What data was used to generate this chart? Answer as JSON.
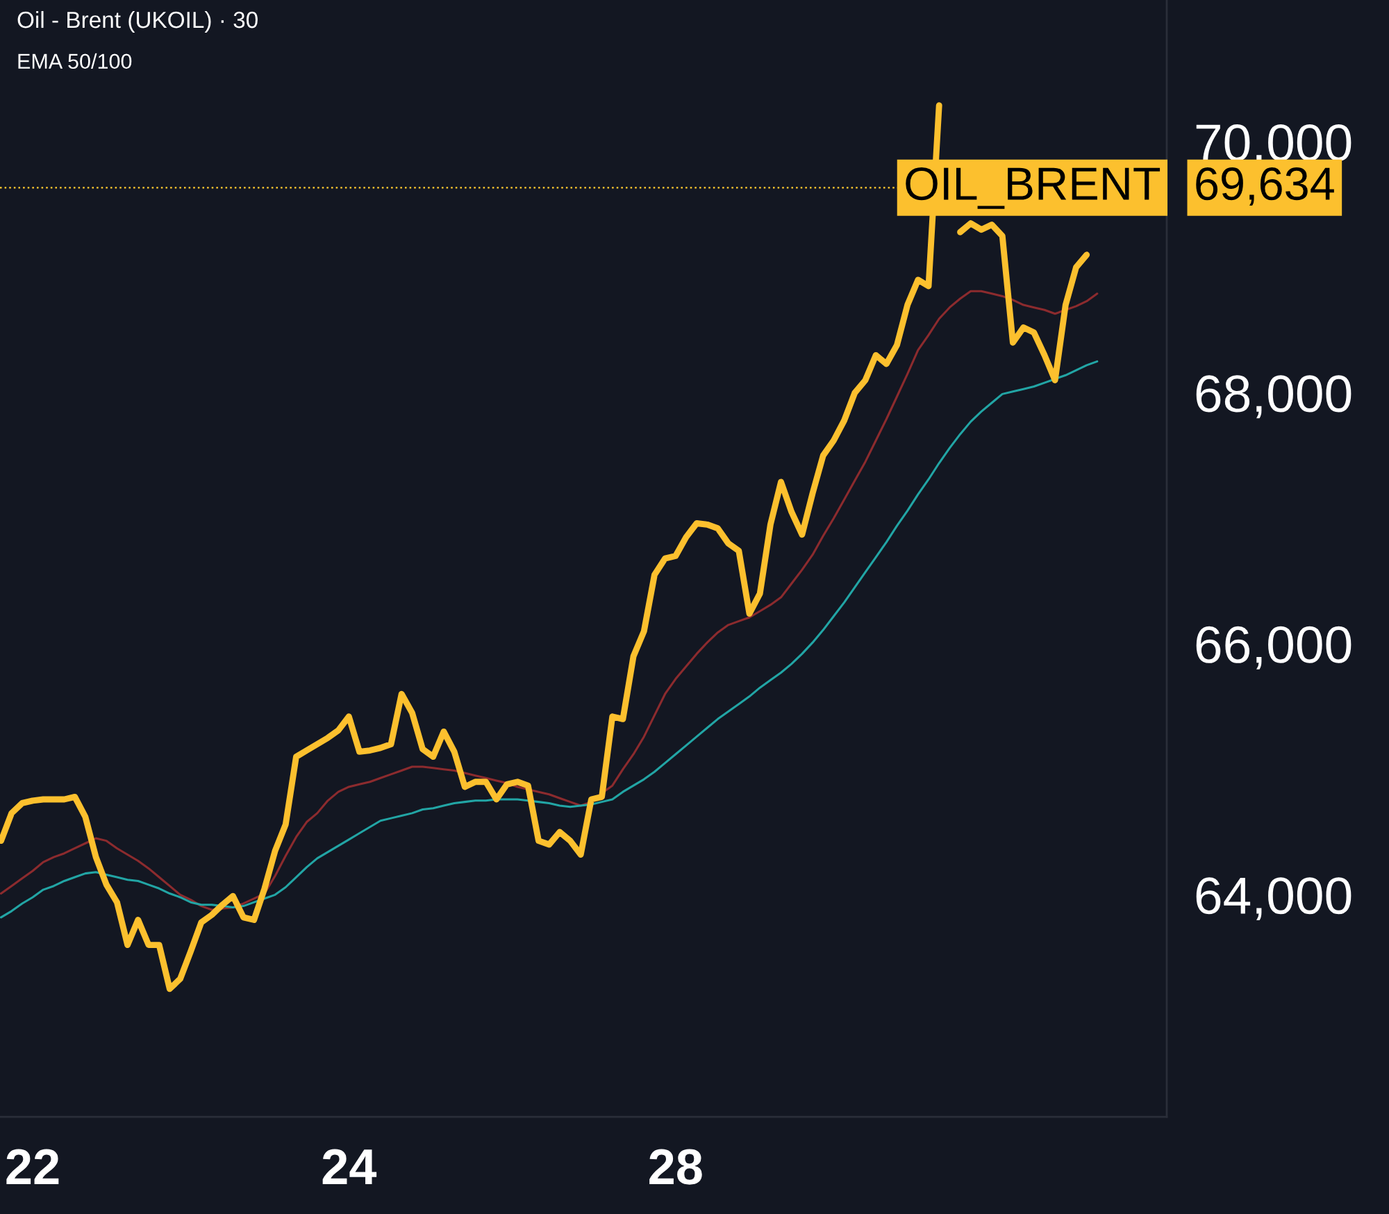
{
  "chart_data": {
    "type": "line",
    "title": "Oil - Brent (UKOIL) · 30",
    "annotations": [
      "EMA 50/100",
      "69,634"
    ],
    "categories": [
      null,
      null,
      null,
      "22",
      null,
      null,
      null,
      null,
      null,
      null,
      null,
      null,
      null,
      null,
      null,
      null,
      null,
      null,
      null,
      null,
      null,
      null,
      null,
      null,
      null,
      null,
      null,
      null,
      null,
      null,
      null,
      null,
      null,
      "24",
      null,
      null,
      null,
      null,
      null,
      null,
      null,
      null,
      null,
      null,
      null,
      null,
      null,
      null,
      null,
      null,
      null,
      null,
      null,
      null,
      null,
      null,
      null,
      null,
      null,
      null,
      null,
      null,
      null,
      null,
      "28",
      null,
      null,
      null,
      null,
      null,
      null,
      null,
      null,
      null,
      null,
      null,
      null,
      null,
      null,
      null,
      null,
      null,
      null,
      null,
      null,
      null,
      null,
      null,
      null,
      null,
      null,
      null,
      null,
      null,
      null,
      null,
      null,
      null,
      null,
      null,
      null,
      null,
      null,
      null,
      null
    ],
    "series": [
      {
        "color": "#fcc02e",
        "values": [
          64430,
          64650,
          64730,
          64750,
          64760,
          64760,
          64760,
          64780,
          64620,
          64300,
          64080,
          63940,
          63600,
          63800,
          63600,
          63600,
          63250,
          63330,
          63550,
          63780,
          63840,
          63920,
          63990,
          63820,
          63800,
          64050,
          64350,
          64560,
          65100,
          65150,
          65200,
          65250,
          65310,
          65420,
          65140,
          65150,
          65170,
          65200,
          65600,
          65450,
          65160,
          65100,
          65300,
          65140,
          64860,
          64900,
          64900,
          64760,
          64880,
          64900,
          64870,
          64430,
          64400,
          64500,
          64430,
          64320,
          64760,
          64780,
          65420,
          65400,
          65900,
          66100,
          66550,
          66680,
          66700,
          66850,
          66960,
          66950,
          66920,
          66800,
          66740,
          66240,
          66400,
          66950,
          67290,
          67050,
          66870,
          67200,
          67500,
          67620,
          67780,
          68000,
          68100,
          68300,
          68230,
          68380,
          68700,
          68900,
          68850,
          70290,
          null,
          69280,
          69350,
          69300,
          69340,
          69250,
          68400,
          68520,
          68480,
          68300,
          68100,
          68700,
          69000,
          69100,
          null
        ]
      },
      {
        "color": "#8c2b2e",
        "values": [
          64010,
          64070,
          64130,
          64190,
          64260,
          64300,
          64330,
          64370,
          64410,
          64450,
          64430,
          64370,
          64320,
          64270,
          64210,
          64140,
          64070,
          64000,
          63960,
          63910,
          63880,
          63890,
          63900,
          63930,
          63970,
          64010,
          64150,
          64310,
          64460,
          64580,
          64650,
          64750,
          64820,
          64860,
          64880,
          64900,
          64930,
          64960,
          64990,
          65020,
          65020,
          65010,
          65000,
          64990,
          64970,
          64950,
          64930,
          64910,
          64890,
          64860,
          64840,
          64820,
          64800,
          64770,
          64740,
          64710,
          64740,
          64810,
          64870,
          65000,
          65120,
          65260,
          65430,
          65600,
          65720,
          65820,
          65920,
          66010,
          66090,
          66150,
          66180,
          66210,
          66260,
          66310,
          66370,
          66480,
          66590,
          66710,
          66860,
          67000,
          67150,
          67300,
          67450,
          67620,
          67790,
          67970,
          68150,
          68340,
          68460,
          68590,
          68680,
          68750,
          68810,
          68810,
          68790,
          68770,
          68740,
          68700,
          68680,
          68660,
          68630,
          68660,
          68690,
          68730,
          68790
        ]
      },
      {
        "color": "#22a5a5",
        "values": [
          63820,
          63870,
          63930,
          63980,
          64040,
          64070,
          64110,
          64140,
          64170,
          64180,
          64160,
          64140,
          64120,
          64110,
          64080,
          64050,
          64010,
          63980,
          63940,
          63920,
          63920,
          63910,
          63900,
          63910,
          63940,
          63970,
          64000,
          64060,
          64140,
          64220,
          64290,
          64340,
          64390,
          64440,
          64490,
          64540,
          64590,
          64610,
          64630,
          64650,
          64680,
          64690,
          64710,
          64730,
          64740,
          64750,
          64750,
          64760,
          64760,
          64760,
          64750,
          64740,
          64730,
          64710,
          64700,
          64710,
          64720,
          64740,
          64760,
          64820,
          64870,
          64920,
          64980,
          65050,
          65120,
          65190,
          65260,
          65330,
          65400,
          65460,
          65520,
          65580,
          65650,
          65710,
          65770,
          65840,
          65920,
          66010,
          66110,
          66220,
          66330,
          66450,
          66570,
          66690,
          66810,
          66940,
          67060,
          67190,
          67310,
          67440,
          67560,
          67670,
          67770,
          67850,
          67920,
          67990,
          68010,
          68030,
          68050,
          68080,
          68110,
          68140,
          68180,
          68220,
          68250
        ]
      }
    ],
    "ylim": [
      62230,
      71130
    ],
    "yticks": [
      {
        "value": 64000,
        "label": "64,000"
      },
      {
        "value": 66000,
        "label": "66,000"
      },
      {
        "value": 68000,
        "label": "68,000"
      },
      {
        "value": 70000,
        "label": "70,000"
      }
    ],
    "ref_lines": [
      {
        "axis": "y",
        "value": 69634,
        "label": "OIL_BRENT",
        "color": "#fcc02e",
        "line_style": "dotted"
      }
    ],
    "grid": false,
    "marker": "none",
    "line_style": "solid"
  }
}
